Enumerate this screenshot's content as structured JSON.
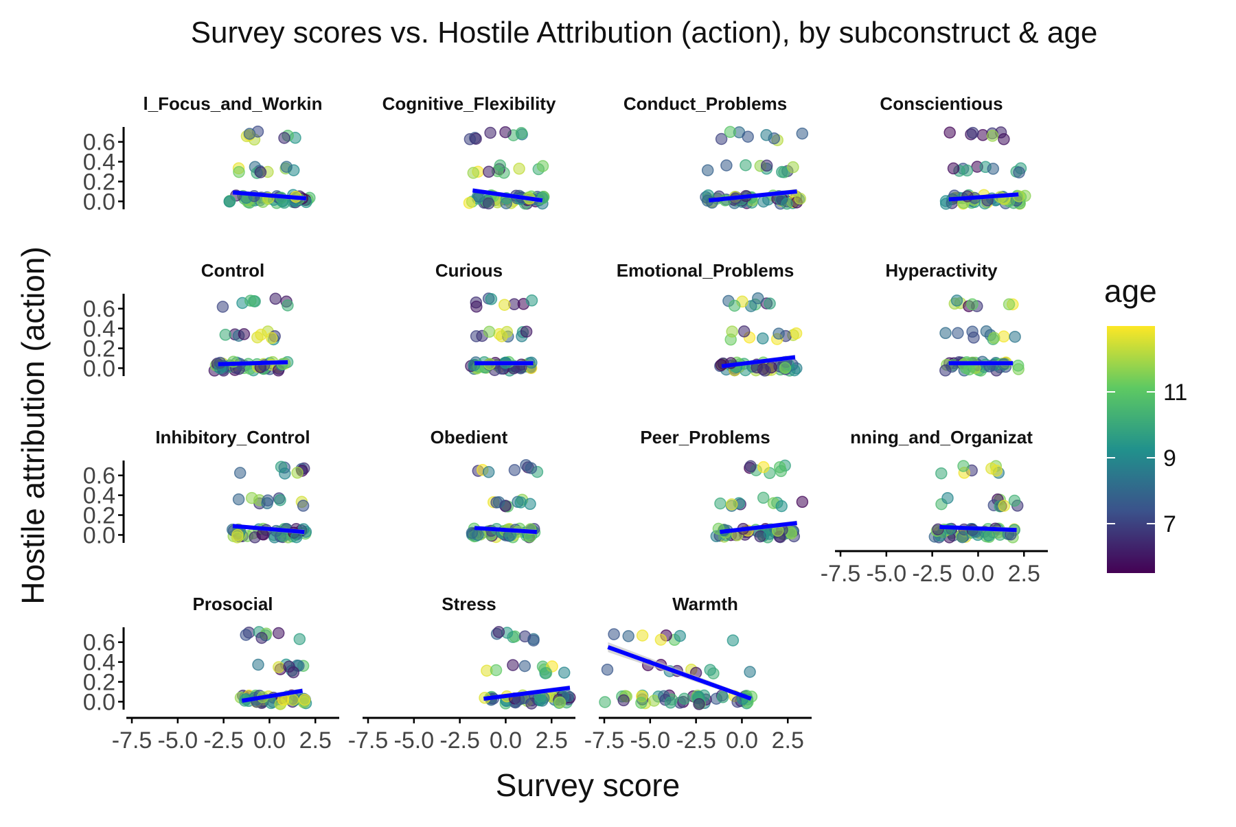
{
  "chart_data": {
    "type": "scatter",
    "title": "Survey scores vs. Hostile Attribution (action), by subconstruct & age",
    "xlabel": "Survey score",
    "ylabel": "Hostile attribution (action)",
    "xlim": [
      -7.8,
      3.8
    ],
    "ylim": [
      -0.08,
      0.75
    ],
    "x_ticks": [
      -7.5,
      -5.0,
      -2.5,
      0.0,
      2.5
    ],
    "x_tick_labels": [
      "-7.5",
      "-5.0",
      "-2.5",
      "0.0",
      "2.5"
    ],
    "y_ticks": [
      0.0,
      0.2,
      0.4,
      0.6
    ],
    "y_tick_labels": [
      "0.0",
      "0.2",
      "0.4",
      "0.6"
    ],
    "y_levels": [
      0.02,
      0.33,
      0.66
    ],
    "legend": {
      "title": "age",
      "range": [
        5.5,
        13
      ],
      "ticks": [
        7,
        9,
        11
      ],
      "tick_labels": [
        "7",
        "9",
        "11"
      ],
      "colormap": "viridis",
      "colors": [
        "#440154",
        "#3b528b",
        "#21918c",
        "#5ec962",
        "#fde725"
      ]
    },
    "fit_line_color": "#0000ff",
    "ribbon_color": "#bbbbbb",
    "facets": [
      {
        "label": "Attentional_Focus_and_Working_Memory",
        "display_label": "l_Focus_and_Workin",
        "xr": [
          -2.2,
          2.2
        ],
        "fit": [
          [
            -2.0,
            0.09
          ],
          [
            2.0,
            0.03
          ]
        ]
      },
      {
        "label": "Cognitive_Flexibility",
        "display_label": "Cognitive_Flexibility",
        "xr": [
          -2.0,
          2.1
        ],
        "fit": [
          [
            -1.8,
            0.11
          ],
          [
            2.0,
            0.01
          ]
        ]
      },
      {
        "label": "Conduct_Problems",
        "display_label": "Conduct_Problems",
        "xr": [
          -2.0,
          3.3
        ],
        "fit": [
          [
            -1.8,
            0.01
          ],
          [
            3.0,
            0.1
          ]
        ]
      },
      {
        "label": "Conscientious",
        "display_label": "Conscientious",
        "xr": [
          -1.8,
          2.6
        ],
        "fit": [
          [
            -1.6,
            0.02
          ],
          [
            2.2,
            0.07
          ]
        ]
      },
      {
        "label": "Control",
        "display_label": "Control",
        "xr": [
          -3.0,
          1.1
        ],
        "fit": [
          [
            -2.8,
            0.04
          ],
          [
            1.0,
            0.06
          ]
        ]
      },
      {
        "label": "Curious",
        "display_label": "Curious",
        "xr": [
          -1.9,
          1.6
        ],
        "fit": [
          [
            -1.7,
            0.05
          ],
          [
            1.5,
            0.05
          ]
        ]
      },
      {
        "label": "Emotional_Problems",
        "display_label": "Emotional_Problems",
        "xr": [
          -1.2,
          3.1
        ],
        "fit": [
          [
            -1.1,
            0.02
          ],
          [
            2.9,
            0.11
          ]
        ]
      },
      {
        "label": "Hyperactivity",
        "display_label": "Hyperactivity",
        "xr": [
          -1.8,
          2.2
        ],
        "fit": [
          [
            -1.6,
            0.05
          ],
          [
            1.9,
            0.05
          ]
        ]
      },
      {
        "label": "Inhibitory_Control",
        "display_label": "Inhibitory_Control",
        "xr": [
          -2.2,
          2.0
        ],
        "fit": [
          [
            -2.0,
            0.09
          ],
          [
            1.9,
            0.03
          ]
        ]
      },
      {
        "label": "Obedient",
        "display_label": "Obedient",
        "xr": [
          -1.9,
          1.8
        ],
        "fit": [
          [
            -1.7,
            0.07
          ],
          [
            1.7,
            0.03
          ]
        ]
      },
      {
        "label": "Peer_Problems",
        "display_label": "Peer_Problems",
        "xr": [
          -1.4,
          3.3
        ],
        "fit": [
          [
            -1.2,
            0.03
          ],
          [
            3.0,
            0.12
          ]
        ]
      },
      {
        "label": "Planning_and_Organization",
        "display_label": "nning_and_Organizat",
        "xr": [
          -2.4,
          2.2
        ],
        "fit": [
          [
            -2.1,
            0.08
          ],
          [
            2.1,
            0.05
          ]
        ]
      },
      {
        "label": "Prosocial",
        "display_label": "Prosocial",
        "xr": [
          -1.6,
          2.0
        ],
        "fit": [
          [
            -1.5,
            0.01
          ],
          [
            1.8,
            0.11
          ]
        ]
      },
      {
        "label": "Stress",
        "display_label": "Stress",
        "xr": [
          -1.3,
          3.6
        ],
        "fit": [
          [
            -1.2,
            0.03
          ],
          [
            3.5,
            0.14
          ]
        ]
      },
      {
        "label": "Warmth",
        "display_label": "Warmth",
        "xr": [
          -7.5,
          0.6
        ],
        "fit": [
          [
            -7.3,
            0.55
          ],
          [
            0.5,
            0.03
          ]
        ]
      }
    ]
  }
}
